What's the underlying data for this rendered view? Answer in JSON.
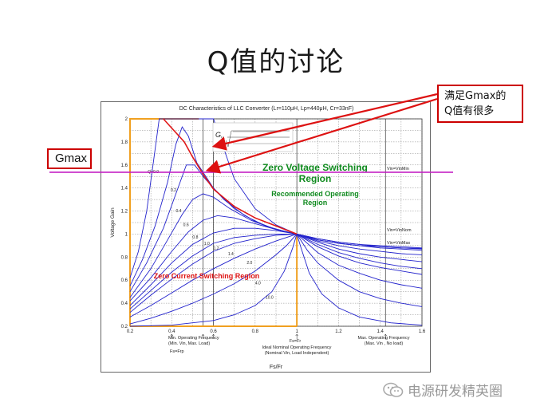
{
  "slide": {
    "title": "Q值的讨论"
  },
  "callouts": {
    "gmax_label": "Gmax",
    "many_gmax_line1": "满足Gmax的",
    "many_gmax_line2": "Q值有很多"
  },
  "watermark": {
    "text": "电源研发精英圈"
  },
  "chart_data": {
    "type": "line",
    "title": "DC Characteristics of LLC Converter (Lr=110μH, Lp=440μH, Cr=33nF)",
    "xlabel": "Fs/Fr",
    "ylabel": "Voltage Gain",
    "xlim": [
      0.2,
      1.6
    ],
    "ylim": [
      0.2,
      2.0
    ],
    "xticks": [
      "0.2",
      "0.4",
      "0.6",
      "0.8",
      "1",
      "1.2",
      "1.4",
      "1.6"
    ],
    "yticks": [
      "0.2",
      "0.4",
      "0.6",
      "0.8",
      "1",
      "1.2",
      "1.4",
      "1.6",
      "1.8",
      "2"
    ],
    "grid": true,
    "series": [
      {
        "label": "Q=0.0",
        "label_at": [
          0.285,
          1.53
        ],
        "points": [
          [
            0.2,
            0.62
          ],
          [
            0.24,
            0.85
          ],
          [
            0.28,
            1.2
          ],
          [
            0.31,
            1.6
          ],
          [
            0.34,
            2.0
          ],
          [
            0.6,
            2.0
          ],
          [
            0.7,
            1.48
          ],
          [
            0.8,
            1.22
          ],
          [
            0.9,
            1.08
          ],
          [
            1.0,
            1.0
          ],
          [
            1.1,
            0.95
          ],
          [
            1.2,
            0.92
          ],
          [
            1.3,
            0.9
          ],
          [
            1.4,
            0.89
          ],
          [
            1.5,
            0.88
          ],
          [
            1.6,
            0.875
          ]
        ]
      },
      {
        "label": "0.2",
        "label_at": [
          0.395,
          1.37
        ],
        "points": [
          [
            0.2,
            0.55
          ],
          [
            0.26,
            0.78
          ],
          [
            0.32,
            1.07
          ],
          [
            0.38,
            1.45
          ],
          [
            0.42,
            1.78
          ],
          [
            0.45,
            1.93
          ],
          [
            0.48,
            1.85
          ],
          [
            0.52,
            1.62
          ],
          [
            0.6,
            1.4
          ],
          [
            0.7,
            1.22
          ],
          [
            0.8,
            1.11
          ],
          [
            0.9,
            1.04
          ],
          [
            1.0,
            1.0
          ],
          [
            1.1,
            0.96
          ],
          [
            1.2,
            0.93
          ],
          [
            1.3,
            0.91
          ],
          [
            1.4,
            0.9
          ],
          [
            1.5,
            0.89
          ],
          [
            1.6,
            0.88
          ]
        ]
      },
      {
        "label": "0.4",
        "label_at": [
          0.42,
          1.19
        ],
        "points": [
          [
            0.2,
            0.5
          ],
          [
            0.28,
            0.75
          ],
          [
            0.36,
            1.05
          ],
          [
            0.42,
            1.35
          ],
          [
            0.47,
            1.6
          ],
          [
            0.51,
            1.6
          ],
          [
            0.56,
            1.48
          ],
          [
            0.65,
            1.3
          ],
          [
            0.75,
            1.16
          ],
          [
            0.85,
            1.07
          ],
          [
            0.95,
            1.02
          ],
          [
            1.0,
            1.0
          ],
          [
            1.1,
            0.96
          ],
          [
            1.2,
            0.93
          ],
          [
            1.3,
            0.91
          ],
          [
            1.4,
            0.89
          ],
          [
            1.5,
            0.88
          ],
          [
            1.6,
            0.87
          ]
        ]
      },
      {
        "label": "0.6",
        "label_at": [
          0.455,
          1.07
        ],
        "points": [
          [
            0.2,
            0.45
          ],
          [
            0.3,
            0.7
          ],
          [
            0.38,
            0.95
          ],
          [
            0.45,
            1.17
          ],
          [
            0.5,
            1.3
          ],
          [
            0.55,
            1.35
          ],
          [
            0.6,
            1.32
          ],
          [
            0.68,
            1.22
          ],
          [
            0.78,
            1.12
          ],
          [
            0.88,
            1.05
          ],
          [
            0.95,
            1.02
          ],
          [
            1.0,
            1.0
          ],
          [
            1.1,
            0.95
          ],
          [
            1.2,
            0.92
          ],
          [
            1.3,
            0.9
          ],
          [
            1.4,
            0.88
          ],
          [
            1.5,
            0.87
          ],
          [
            1.6,
            0.86
          ]
        ]
      },
      {
        "label": "0.8",
        "label_at": [
          0.5,
          0.96
        ],
        "points": [
          [
            0.2,
            0.42
          ],
          [
            0.3,
            0.62
          ],
          [
            0.4,
            0.85
          ],
          [
            0.48,
            1.02
          ],
          [
            0.55,
            1.12
          ],
          [
            0.62,
            1.16
          ],
          [
            0.7,
            1.14
          ],
          [
            0.8,
            1.09
          ],
          [
            0.9,
            1.04
          ],
          [
            1.0,
            1.0
          ],
          [
            1.1,
            0.94
          ],
          [
            1.2,
            0.9
          ],
          [
            1.3,
            0.87
          ],
          [
            1.4,
            0.85
          ],
          [
            1.5,
            0.83
          ],
          [
            1.6,
            0.82
          ]
        ]
      },
      {
        "label": "1.0",
        "label_at": [
          0.555,
          0.905
        ],
        "points": [
          [
            0.2,
            0.38
          ],
          [
            0.3,
            0.56
          ],
          [
            0.4,
            0.75
          ],
          [
            0.5,
            0.91
          ],
          [
            0.6,
            1.01
          ],
          [
            0.7,
            1.05
          ],
          [
            0.8,
            1.05
          ],
          [
            0.9,
            1.03
          ],
          [
            1.0,
            1.0
          ],
          [
            1.1,
            0.93
          ],
          [
            1.2,
            0.87
          ],
          [
            1.3,
            0.83
          ],
          [
            1.4,
            0.8
          ],
          [
            1.5,
            0.78
          ],
          [
            1.6,
            0.76
          ]
        ]
      },
      {
        "label": "1.2",
        "label_at": [
          0.6,
          0.865
        ],
        "points": [
          [
            0.2,
            0.35
          ],
          [
            0.3,
            0.51
          ],
          [
            0.4,
            0.67
          ],
          [
            0.5,
            0.81
          ],
          [
            0.6,
            0.92
          ],
          [
            0.7,
            0.97
          ],
          [
            0.8,
            0.99
          ],
          [
            0.9,
            1.0
          ],
          [
            1.0,
            1.0
          ],
          [
            1.1,
            0.91
          ],
          [
            1.2,
            0.84
          ],
          [
            1.3,
            0.79
          ],
          [
            1.4,
            0.75
          ],
          [
            1.5,
            0.72
          ],
          [
            1.6,
            0.7
          ]
        ]
      },
      {
        "label": "1.4",
        "label_at": [
          0.67,
          0.815
        ],
        "points": [
          [
            0.2,
            0.32
          ],
          [
            0.3,
            0.47
          ],
          [
            0.4,
            0.61
          ],
          [
            0.5,
            0.74
          ],
          [
            0.6,
            0.85
          ],
          [
            0.7,
            0.92
          ],
          [
            0.8,
            0.96
          ],
          [
            0.9,
            0.99
          ],
          [
            1.0,
            1.0
          ],
          [
            1.1,
            0.89
          ],
          [
            1.2,
            0.81
          ],
          [
            1.3,
            0.75
          ],
          [
            1.4,
            0.71
          ],
          [
            1.5,
            0.68
          ],
          [
            1.6,
            0.65
          ]
        ]
      },
      {
        "label": "2.0",
        "label_at": [
          0.76,
          0.74
        ],
        "points": [
          [
            0.2,
            0.28
          ],
          [
            0.3,
            0.38
          ],
          [
            0.4,
            0.49
          ],
          [
            0.5,
            0.6
          ],
          [
            0.6,
            0.7
          ],
          [
            0.7,
            0.79
          ],
          [
            0.8,
            0.87
          ],
          [
            0.9,
            0.94
          ],
          [
            1.0,
            1.0
          ],
          [
            1.1,
            0.84
          ],
          [
            1.2,
            0.73
          ],
          [
            1.3,
            0.66
          ],
          [
            1.4,
            0.6
          ],
          [
            1.5,
            0.56
          ],
          [
            1.6,
            0.53
          ]
        ]
      },
      {
        "label": "4.0",
        "label_at": [
          0.8,
          0.565
        ],
        "points": [
          [
            0.2,
            0.22
          ],
          [
            0.3,
            0.27
          ],
          [
            0.4,
            0.33
          ],
          [
            0.5,
            0.4
          ],
          [
            0.6,
            0.48
          ],
          [
            0.7,
            0.57
          ],
          [
            0.8,
            0.68
          ],
          [
            0.9,
            0.82
          ],
          [
            0.95,
            0.9
          ],
          [
            1.0,
            1.0
          ],
          [
            1.05,
            0.86
          ],
          [
            1.1,
            0.75
          ],
          [
            1.2,
            0.6
          ],
          [
            1.3,
            0.5
          ],
          [
            1.4,
            0.44
          ],
          [
            1.5,
            0.4
          ],
          [
            1.6,
            0.37
          ]
        ]
      },
      {
        "label": "10.0",
        "label_at": [
          0.85,
          0.44
        ],
        "points": [
          [
            0.2,
            0.2
          ],
          [
            0.4,
            0.21
          ],
          [
            0.6,
            0.25
          ],
          [
            0.7,
            0.3
          ],
          [
            0.8,
            0.38
          ],
          [
            0.88,
            0.5
          ],
          [
            0.94,
            0.68
          ],
          [
            0.98,
            0.88
          ],
          [
            1.0,
            1.0
          ],
          [
            1.02,
            0.88
          ],
          [
            1.06,
            0.66
          ],
          [
            1.12,
            0.48
          ],
          [
            1.2,
            0.36
          ],
          [
            1.3,
            0.28
          ],
          [
            1.45,
            0.23
          ],
          [
            1.6,
            0.21
          ]
        ]
      }
    ],
    "boundary_curve": {
      "color": "#e01818",
      "points": [
        [
          0.36,
          2.0
        ],
        [
          0.46,
          1.8
        ],
        [
          0.5,
          1.67
        ],
        [
          0.55,
          1.52
        ],
        [
          0.6,
          1.39
        ],
        [
          0.7,
          1.24
        ],
        [
          0.8,
          1.14
        ],
        [
          0.9,
          1.07
        ],
        [
          1.0,
          1.0
        ]
      ]
    },
    "peak_curve": {
      "color": "#e01818",
      "points": [
        [
          0.2,
          0.2
        ],
        [
          0.2,
          2.0
        ]
      ]
    },
    "gmax_line": {
      "y": 1.53,
      "color": "#c31ec3"
    },
    "operating_region": {
      "color": "#f0a020",
      "x_min": 0.2,
      "x_max": 1.0,
      "y_top": 2.0
    },
    "vlines": [
      0.55,
      0.6,
      1.0,
      1.425
    ],
    "annotations": {
      "gain_formula_G": "G",
      "gain_formula_subscript": "V",
      "zvs_line1": "Zero Voltage Switching",
      "zvs_line2": "Region",
      "rec_line1": "Recommended Operating",
      "rec_line2": "Region",
      "zcs": "Zero Current Switching Region",
      "vin_min": "Vin=VinMin",
      "vin_nom": "Vin=VinNom",
      "vin_max": "Vin=VinMax",
      "min_freq_line1": "Min. Operating Frequency",
      "min_freq_line2": "(Min. Vin, Max. Load)",
      "fs_frp": "Fs=Frp",
      "ideal_freq_line1": "Ideal Nominal Operating Frequency",
      "ideal_freq_line2": "(Nominal Vin, Load Independent)",
      "fs_fr": "Fs=Fr",
      "max_freq_line1": "Max. Operating Frequency",
      "max_freq_line2": "(Max. Vin , No load)"
    },
    "colors": {
      "curves": "#2222cc",
      "zvs_text": "#0f8a1e",
      "zcs_text": "#dd1111",
      "grid": "#888888"
    }
  }
}
